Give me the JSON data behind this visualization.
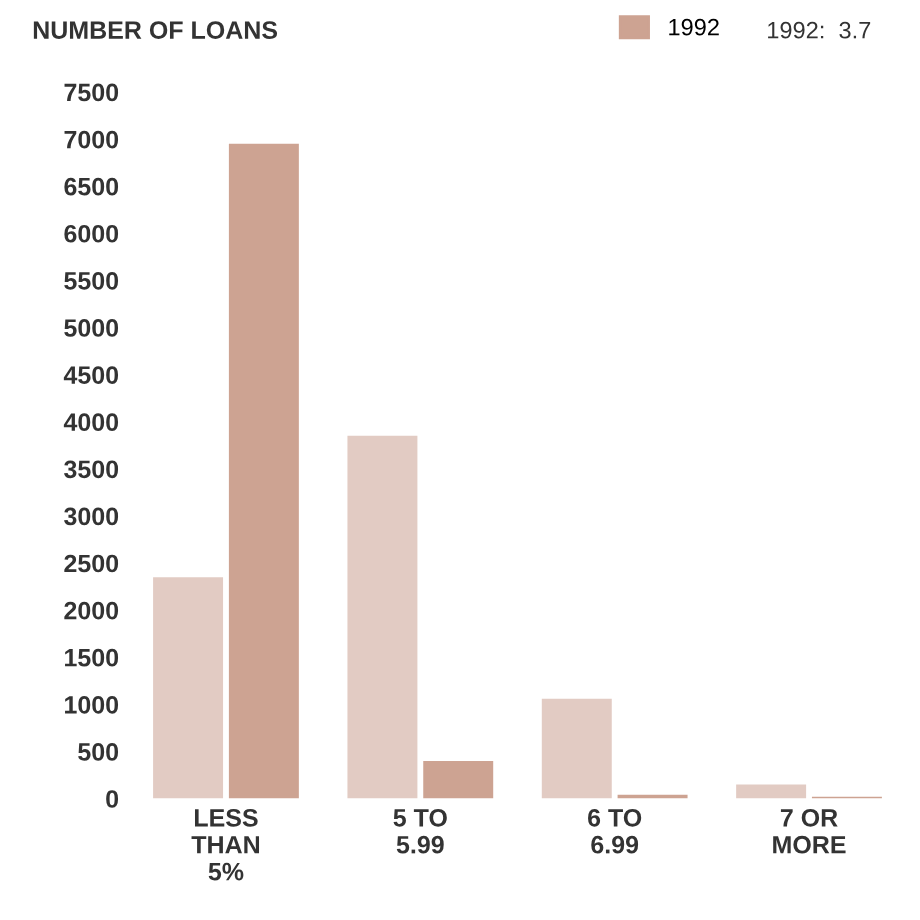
{
  "chart_data": {
    "type": "bar",
    "ylabel": "NUMBER OF LOANS",
    "categories": [
      "LESS\nTHAN\n5%",
      "5 TO\n5.99",
      "6 TO\n6.99",
      "7 OR\nMORE"
    ],
    "series": [
      {
        "color": "#e2cbc3",
        "values": [
          2350,
          3850,
          1060,
          150
        ]
      },
      {
        "name": "1992",
        "color": "#cda392",
        "values": [
          6950,
          400,
          40,
          20
        ]
      }
    ],
    "annotations": [
      "1992:  3.7"
    ],
    "ylim": [
      0,
      7500
    ],
    "yticks": [
      0,
      500,
      1000,
      1500,
      2000,
      2500,
      3000,
      3500,
      4000,
      4500,
      5000,
      5500,
      6000,
      6500,
      7000,
      7500
    ],
    "grid": false,
    "legend": "top right"
  }
}
